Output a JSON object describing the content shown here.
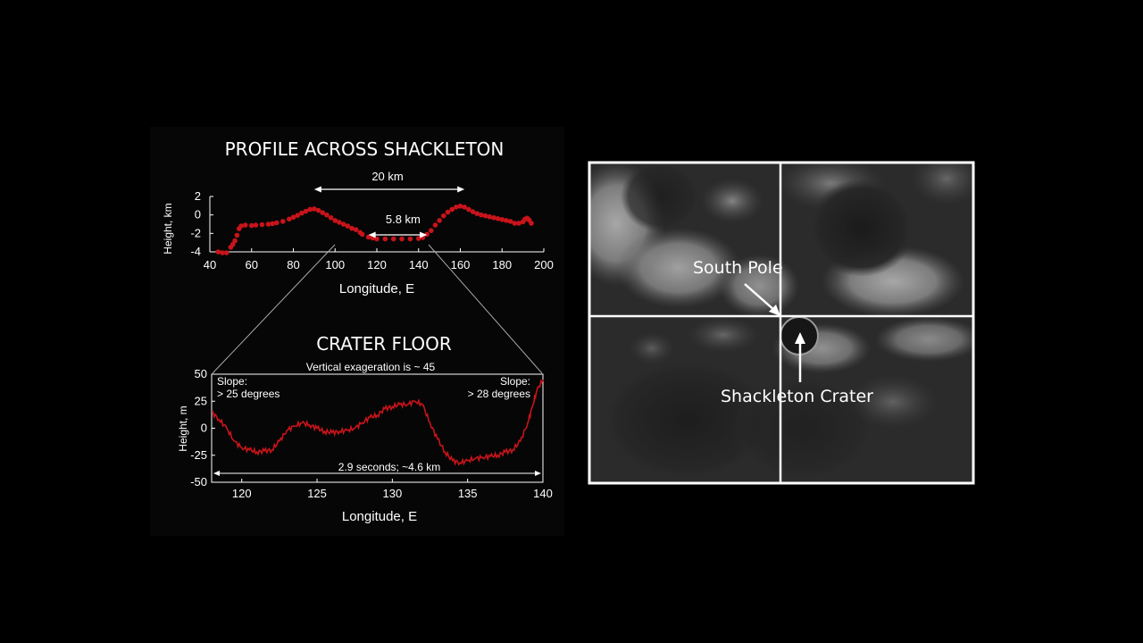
{
  "colors": {
    "background": "#000000",
    "chart_panel": "#060606",
    "series_red": "#c8141a",
    "axis_white": "#ffffff",
    "connector_gray": "#a8a8a8",
    "grid_white": "#ffffff"
  },
  "chart_data": [
    {
      "type": "scatter",
      "title": "PROFILE ACROSS SHACKLETON",
      "xlabel": "Longitude, E",
      "ylabel": "Height, km",
      "xlim": [
        40,
        200
      ],
      "ylim": [
        -4,
        2
      ],
      "x_ticks": [
        40,
        60,
        80,
        100,
        120,
        140,
        160,
        180,
        200
      ],
      "y_ticks": [
        2,
        0,
        -2,
        -4
      ],
      "grid": false,
      "series": [
        {
          "x": [
            44,
            46,
            48,
            50,
            51,
            52,
            53,
            54,
            55,
            57,
            60,
            62,
            65,
            68,
            70,
            72,
            75,
            78,
            80,
            82,
            84,
            86,
            88,
            90,
            92,
            94,
            96,
            98,
            100,
            102,
            104,
            106,
            108,
            110,
            112,
            113,
            116,
            118,
            120,
            124,
            128,
            132,
            136,
            140,
            142,
            144,
            146,
            148,
            150,
            152,
            154,
            156,
            158,
            160,
            162,
            164,
            166,
            168,
            170,
            172,
            174,
            176,
            178,
            180,
            182,
            184,
            186,
            188,
            190,
            191,
            192,
            193,
            194
          ],
          "y": [
            -4,
            -4.1,
            -4.1,
            -3.5,
            -3.2,
            -2.8,
            -2.2,
            -1.5,
            -1.2,
            -1.1,
            -1.15,
            -1.1,
            -1.05,
            -1.0,
            -0.95,
            -0.85,
            -0.7,
            -0.45,
            -0.25,
            -0.05,
            0.2,
            0.4,
            0.6,
            0.65,
            0.5,
            0.25,
            0.0,
            -0.3,
            -0.6,
            -0.8,
            -1.0,
            -1.2,
            -1.45,
            -1.6,
            -1.9,
            -2.1,
            -2.4,
            -2.5,
            -2.6,
            -2.6,
            -2.6,
            -2.6,
            -2.6,
            -2.55,
            -2.45,
            -2.1,
            -1.7,
            -1.1,
            -0.6,
            -0.1,
            0.3,
            0.6,
            0.85,
            0.95,
            0.85,
            0.6,
            0.35,
            0.15,
            0.0,
            -0.1,
            -0.2,
            -0.3,
            -0.4,
            -0.5,
            -0.6,
            -0.7,
            -0.9,
            -0.9,
            -0.75,
            -0.45,
            -0.35,
            -0.55,
            -0.9
          ]
        }
      ],
      "annotations": [
        {
          "text": "20 km",
          "x1": 90,
          "x2": 162
        },
        {
          "text": "5.8 km",
          "x1": 116,
          "x2": 144
        }
      ]
    },
    {
      "type": "line",
      "title": "CRATER FLOOR",
      "subtitle": "Vertical exageration is ~ 45",
      "xlabel": "Longitude, E",
      "ylabel": "Height, m",
      "xlim": [
        118,
        140
      ],
      "ylim": [
        -50,
        50
      ],
      "x_ticks": [
        120,
        125,
        130,
        135,
        140
      ],
      "y_ticks": [
        50,
        25,
        0,
        -25,
        -50
      ],
      "grid": false,
      "series": [
        {
          "x": [
            118,
            118.5,
            119,
            119.5,
            120,
            120.5,
            121,
            121.5,
            122,
            122.5,
            123,
            123.5,
            124,
            124.5,
            125,
            125.5,
            126,
            126.5,
            127,
            127.5,
            128,
            128.5,
            129,
            129.5,
            130,
            130.5,
            131,
            131.5,
            132,
            132.5,
            133,
            133.5,
            134,
            134.5,
            135,
            135.5,
            136,
            136.5,
            137,
            137.5,
            138,
            138.5,
            139,
            139.3,
            139.6,
            140
          ],
          "y": [
            15,
            8,
            0,
            -12,
            -18,
            -20,
            -22,
            -21,
            -20,
            -12,
            -2,
            2,
            5,
            3,
            0,
            -3,
            -4,
            -3,
            -2,
            0,
            5,
            10,
            12,
            18,
            20,
            22,
            22,
            25,
            22,
            5,
            -10,
            -22,
            -30,
            -32,
            -30,
            -28,
            -27,
            -26,
            -25,
            -22,
            -20,
            -12,
            5,
            20,
            35,
            45
          ]
        }
      ],
      "annotations": [
        {
          "text": "Slope:",
          "text2": "> 25 degrees",
          "side": "left"
        },
        {
          "text": "Slope:",
          "text2": "> 28 degrees",
          "side": "right"
        },
        {
          "text": "2.9 seconds; ~4.6 km",
          "x1": 118,
          "x2": 140
        }
      ]
    }
  ],
  "map": {
    "label_pole": "South Pole",
    "label_crater": "Shackleton Crater"
  }
}
